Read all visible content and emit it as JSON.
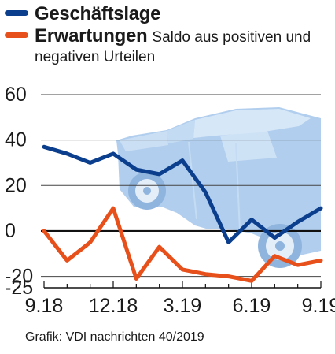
{
  "legend": {
    "series1": "Geschäftslage",
    "series2": "Erwartungen",
    "note_line1": "Saldo aus positiven und",
    "note_line2": "negativen Urteilen"
  },
  "source": "Grafik: VDI nachrichten 40/2019",
  "colors": {
    "series1": "#0b3f8e",
    "series2": "#e8501b",
    "grid": "#444444",
    "car_body": "#a9c9ec",
    "car_light": "#d6e7f7"
  },
  "chart_data": {
    "type": "line",
    "x": [
      "9.18",
      "10.18",
      "11.18",
      "12.18",
      "1.19",
      "2.19",
      "3.19",
      "4.19",
      "5.19",
      "6.19",
      "7.19",
      "8.19",
      "9.19"
    ],
    "xticks": [
      "9.18",
      "12.18",
      "3.19",
      "6.19",
      "9.19"
    ],
    "yticks": [
      "60",
      "40",
      "20",
      "0",
      "-20",
      "-25"
    ],
    "ylim": [
      -25,
      60
    ],
    "grid": true,
    "legend_position": "top-left",
    "series": [
      {
        "name": "Geschäftslage",
        "values": [
          37,
          34,
          30,
          34,
          27,
          25,
          31,
          17,
          -5,
          5,
          -3,
          4,
          10
        ]
      },
      {
        "name": "Erwartungen",
        "values": [
          0,
          -13,
          -5,
          10,
          -21,
          -7,
          -17,
          -19,
          -20,
          -22,
          -11,
          -15,
          -13
        ]
      }
    ]
  },
  "illustration": {
    "name": "car-illustration",
    "description_icon": "car-icon"
  }
}
